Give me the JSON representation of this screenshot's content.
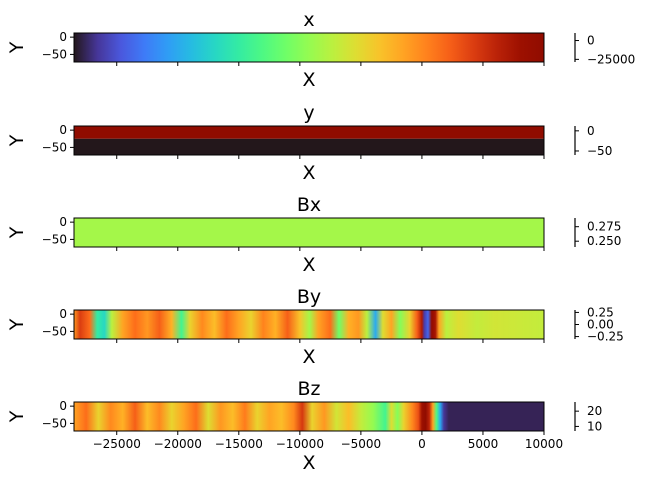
{
  "figure": {
    "x_tick_labels": [
      "−25000",
      "−20000",
      "−15000",
      "−10000",
      "−5000",
      "0",
      "5000",
      "10000"
    ],
    "x_ticks": [
      -25000,
      -20000,
      -15000,
      -10000,
      -5000,
      0,
      5000,
      10000
    ],
    "xlim": [
      -28500,
      10000
    ],
    "colormap": "turbo"
  },
  "chart_data": [
    {
      "type": "heatmap",
      "title": "x",
      "xlabel": "X",
      "ylabel": "Y",
      "y_tick_labels": [
        "0",
        "−50"
      ],
      "y_ticks": [
        0,
        -50
      ],
      "ylim": [
        -72,
        12
      ],
      "colorbar_tick_labels": [
        "0",
        "−25000"
      ],
      "colorbar_ticks": [
        0,
        -25000
      ],
      "colorbar_range": [
        -28500,
        10000
      ],
      "profile": "linear-in-x",
      "values": [
        -28500,
        -19000,
        -9500,
        0,
        10000
      ]
    },
    {
      "type": "heatmap",
      "title": "y",
      "xlabel": "X",
      "ylabel": "Y",
      "y_tick_labels": [
        "0",
        "−50"
      ],
      "y_ticks": [
        0,
        -50
      ],
      "ylim": [
        -72,
        12
      ],
      "colorbar_tick_labels": [
        "0",
        "−50"
      ],
      "colorbar_ticks": [
        0,
        -50
      ],
      "colorbar_range": [
        -60,
        12
      ],
      "profile": "two-rows",
      "row_values": [
        {
          "y": 0,
          "value": 12
        },
        {
          "y": -50,
          "value": -60
        }
      ]
    },
    {
      "type": "heatmap",
      "title": "Bx",
      "xlabel": "X",
      "ylabel": "Y",
      "y_tick_labels": [
        "0",
        "−50"
      ],
      "y_ticks": [
        0,
        -50
      ],
      "ylim": [
        -72,
        12
      ],
      "colorbar_tick_labels": [
        "0.275",
        "0.250"
      ],
      "colorbar_ticks": [
        0.275,
        0.25
      ],
      "colorbar_range": [
        0.24,
        0.29
      ],
      "profile": "uniform",
      "value": 0.266
    },
    {
      "type": "heatmap",
      "title": "By",
      "xlabel": "X",
      "ylabel": "Y",
      "y_tick_labels": [
        "0",
        "−50"
      ],
      "y_ticks": [
        0,
        -50
      ],
      "ylim": [
        -72,
        12
      ],
      "colorbar_tick_labels": [
        "0.25",
        "0.00",
        "−0.25"
      ],
      "colorbar_ticks": [
        0.25,
        0,
        -0.25
      ],
      "colorbar_range": [
        -0.3,
        0.3
      ],
      "profile": "varying-in-x",
      "color_stops": [
        [
          -28500,
          0.72
        ],
        [
          -28000,
          0.85
        ],
        [
          -27200,
          0.78
        ],
        [
          -26600,
          0.35
        ],
        [
          -26000,
          0.3
        ],
        [
          -25400,
          0.55
        ],
        [
          -24500,
          0.7
        ],
        [
          -23500,
          0.78
        ],
        [
          -22500,
          0.72
        ],
        [
          -21500,
          0.8
        ],
        [
          -20500,
          0.68
        ],
        [
          -19700,
          0.38
        ],
        [
          -19000,
          0.62
        ],
        [
          -18000,
          0.74
        ],
        [
          -17000,
          0.66
        ],
        [
          -16000,
          0.78
        ],
        [
          -15000,
          0.7
        ],
        [
          -14000,
          0.62
        ],
        [
          -13000,
          0.75
        ],
        [
          -12000,
          0.68
        ],
        [
          -11000,
          0.8
        ],
        [
          -10000,
          0.65
        ],
        [
          -9200,
          0.52
        ],
        [
          -8500,
          0.7
        ],
        [
          -7500,
          0.78
        ],
        [
          -6800,
          0.45
        ],
        [
          -6000,
          0.68
        ],
        [
          -5200,
          0.72
        ],
        [
          -4500,
          0.55
        ],
        [
          -3800,
          0.22
        ],
        [
          -3200,
          0.6
        ],
        [
          -2500,
          0.7
        ],
        [
          -1800,
          0.48
        ],
        [
          -1000,
          0.62
        ],
        [
          -400,
          0.8
        ],
        [
          0,
          0.92
        ],
        [
          200,
          0.06
        ],
        [
          500,
          0.12
        ],
        [
          800,
          0.98
        ],
        [
          1100,
          0.93
        ],
        [
          1400,
          0.7
        ],
        [
          2000,
          0.55
        ],
        [
          3000,
          0.6
        ],
        [
          4500,
          0.56
        ],
        [
          6000,
          0.58
        ],
        [
          8000,
          0.57
        ],
        [
          10000,
          0.56
        ]
      ]
    },
    {
      "type": "heatmap",
      "title": "Bz",
      "xlabel": "X",
      "ylabel": "Y",
      "y_tick_labels": [
        "0",
        "−50"
      ],
      "y_ticks": [
        0,
        -50
      ],
      "ylim": [
        -72,
        12
      ],
      "colorbar_tick_labels": [
        "20",
        "10"
      ],
      "colorbar_ticks": [
        20,
        10
      ],
      "colorbar_range": [
        7,
        26
      ],
      "profile": "varying-in-x",
      "color_stops": [
        [
          -28500,
          0.7
        ],
        [
          -27500,
          0.78
        ],
        [
          -26500,
          0.62
        ],
        [
          -25500,
          0.74
        ],
        [
          -24500,
          0.68
        ],
        [
          -23500,
          0.8
        ],
        [
          -22500,
          0.66
        ],
        [
          -21500,
          0.74
        ],
        [
          -20500,
          0.62
        ],
        [
          -19500,
          0.7
        ],
        [
          -18500,
          0.78
        ],
        [
          -17500,
          0.6
        ],
        [
          -16500,
          0.72
        ],
        [
          -15500,
          0.66
        ],
        [
          -14500,
          0.76
        ],
        [
          -13500,
          0.62
        ],
        [
          -12500,
          0.7
        ],
        [
          -11500,
          0.66
        ],
        [
          -10500,
          0.74
        ],
        [
          -9800,
          0.86
        ],
        [
          -9000,
          0.62
        ],
        [
          -8000,
          0.72
        ],
        [
          -7000,
          0.58
        ],
        [
          -6000,
          0.66
        ],
        [
          -5000,
          0.56
        ],
        [
          -4000,
          0.5
        ],
        [
          -3000,
          0.38
        ],
        [
          -2500,
          0.6
        ],
        [
          -2000,
          0.48
        ],
        [
          -1500,
          0.62
        ],
        [
          -800,
          0.74
        ],
        [
          -300,
          0.82
        ],
        [
          0,
          0.95
        ],
        [
          300,
          0.99
        ],
        [
          600,
          0.9
        ],
        [
          900,
          0.7
        ],
        [
          1200,
          0.4
        ],
        [
          1500,
          0.22
        ],
        [
          1800,
          0.05
        ],
        [
          2200,
          0.02
        ],
        [
          10000,
          0.02
        ]
      ]
    }
  ]
}
